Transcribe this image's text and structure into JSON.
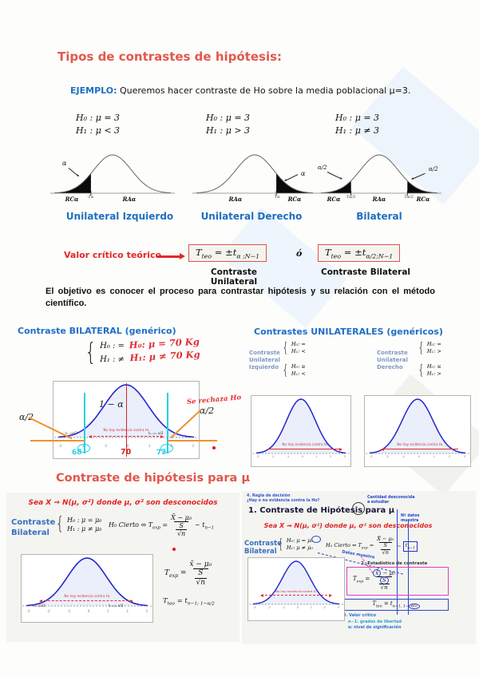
{
  "colors": {
    "title_red": "#e2574c",
    "blue": "#1f6fc0",
    "bright_red": "#e32726",
    "curve_blue": "#2525cc",
    "cyan": "#29cfe4",
    "orange": "#f0922e",
    "magenta": "#e040c0"
  },
  "header": {
    "title": "Tipos de contrastes de hipótesis:",
    "example_label": "EJEMPLO:",
    "example_text": "Queremos hacer contraste de Ho sobre la media poblacional μ=3."
  },
  "hypotheses": [
    {
      "h0": "H₀ : μ = 3",
      "h1": "H₁ : μ < 3"
    },
    {
      "h0": "H₀ : μ = 3",
      "h1": "H₁ : μ > 3"
    },
    {
      "h0": "H₀ : μ = 3",
      "h1": "H₁ : μ ≠ 3"
    }
  ],
  "diagrams": {
    "left": {
      "name": "Unilateral Izquierdo",
      "alpha": "α",
      "rc": "RCα",
      "tick": "-Tα",
      "ra": "RAα"
    },
    "center": {
      "name": "Unilateral Derecho",
      "ra": "RAα",
      "tick": "Tα",
      "rc": "RCα",
      "alpha": "α"
    },
    "right": {
      "name": "Bilateral",
      "alpha_left": "α/2",
      "alpha_right": "α/2",
      "rc_left": "RCα",
      "tick_left": "-Tα/2",
      "ra": "RAα",
      "tick_right": "Tα/2",
      "rc_right": "RCα"
    }
  },
  "critical": {
    "label": "Valor crítico teórico",
    "unilateral": {
      "pre": "T",
      "pre_sub": "teo",
      "mid": " = ±t",
      "sub": "α ;N−1"
    },
    "or": "ó",
    "bilateral": {
      "pre": "T",
      "pre_sub": "teo",
      "mid": " = ±t",
      "sub": "α/2;N−1"
    },
    "caption_unilateral": "Contraste Unilateral",
    "caption_bilateral": "Contraste Bilateral"
  },
  "objective": "El objetivo es conocer el proceso para contrastar hipótesis y su relación con el método científico.",
  "axis_ticks": [
    "-3",
    "-2",
    "-1",
    "0",
    "1",
    "2",
    "3"
  ],
  "slide_bilateral": {
    "title": "Contraste BILATERAL (genérico)",
    "h0": "H₀ : =",
    "h1": "H₁ : ≠",
    "hand_h0": "H₀: μ = 70 Kg",
    "hand_h1": "H₁: μ ≠ 70 Kg",
    "one_minus_alpha": "1 − α",
    "alpha_left": "α/2",
    "alpha_right": "α/2",
    "reject": "Se rechaza Ho",
    "no_evidence": "No hay evidencia contra H₀",
    "tail_left": "tₙ₋₁;α/2",
    "tail_right": "tₙ₋₁;₁₋α/2",
    "x68": "68",
    "x70": "70",
    "x72": "72"
  },
  "slide_unilaterales": {
    "title": "Contrastes UNILATERALES (genéricos)",
    "left_label": [
      "Contraste",
      "Unilateral",
      "Izquierdo"
    ],
    "left_g1": {
      "h0": "H₀: =",
      "h1": "H₁: <"
    },
    "left_g2": {
      "h0": "H₀: ≥",
      "h1": "H₁: <"
    },
    "right_label": [
      "Contraste",
      "Unilateral",
      "Derecho"
    ],
    "right_g1": {
      "h0": "H₀: =",
      "h1": "H₁: >"
    },
    "right_g2": {
      "h0": "H₀: ≤",
      "h1": "H₁: >"
    },
    "no_evidence_left": "No hay evidencia contra H₀",
    "no_evidence_right": "No hay evidencia contra H₀"
  },
  "section2": {
    "title": "Contraste de hipótesis para μ"
  },
  "slide_mu": {
    "header": "Sea X ⇝ N(μ, σ²) donde μ, σ² son desconocidos",
    "label1": "Contraste",
    "label2": "Bilateral",
    "h0": "H₀ : μ = μ₀",
    "h1": "H₁ : μ ≠ μ₀",
    "formula": {
      "pre": "H₀ Cierto ⇔ T",
      "pre_sub": "exp",
      "eq": " = ",
      "num": "X̄ − μ₀",
      "den_num": "S",
      "den_den": "√n",
      "tail": " ∼ t",
      "tail_sub": "n−1"
    },
    "texp": {
      "pre": "T",
      "pre_sub": "exp",
      "eq": " = ",
      "num": "x̄ − μ₀",
      "den_num": "S",
      "den_den": "√n"
    },
    "tteo": {
      "pre": "T",
      "pre_sub": "teo",
      "eq": " = t",
      "sub": "n−1; 1−α/2"
    },
    "no_evidence": "No hay evidencia contra H₀",
    "tail_left": "tₙ₋₁;α/2",
    "tail_right": "tₙ₋₁;₁₋α/2"
  },
  "slide_mu_ann": {
    "note1": "4. Regla de decisión",
    "note2": "¿Hay o no evidencia contra la Ho?",
    "title": "1. Contraste de Hipótesis para μ",
    "ann_unknown1": "Cantidad desconocida",
    "ann_unknown2": "a estudiar",
    "ann_ndata1": "Nº datos",
    "ann_ndata2": "muestra",
    "header": "Sea X ⇝ N(μ, σ²) donde μ, σ² son desconocidos",
    "label1": "Contraste",
    "label2": "Bilateral",
    "h0": "H₀: μ = μ₀",
    "h1": "H₁: μ ≠ μ₀",
    "datos_note": "Datos muestra",
    "formula": {
      "pre": "H₀ Cierto ⇔ T",
      "pre_sub": "exp",
      "eq": " = ",
      "num": "X̄ − μ₀",
      "den_num": "S",
      "den_den": "√n",
      "tail": " ∼ ",
      "boxed": "t",
      "boxed_sub": "n−1"
    },
    "estadistico": "2.-Estadístico de contraste",
    "texp": {
      "pre": "T",
      "pre_sub": "exp",
      "eq": " = ",
      "num_circ": "x̄",
      "num_rest": " − μ₀",
      "den_num": "S",
      "den_den": "√n"
    },
    "tteo": {
      "pre": "T",
      "pre_sub": "teo",
      "eq": " = t",
      "sub": "n−1, 1−",
      "sub_circ": "α/2"
    },
    "note_critico": "3. Valor crítico",
    "note_gl": "n−1: grados de libertad",
    "note_alpha": "α: nivel de significación",
    "no_evidence": "No hay evidencia contra H₀"
  }
}
